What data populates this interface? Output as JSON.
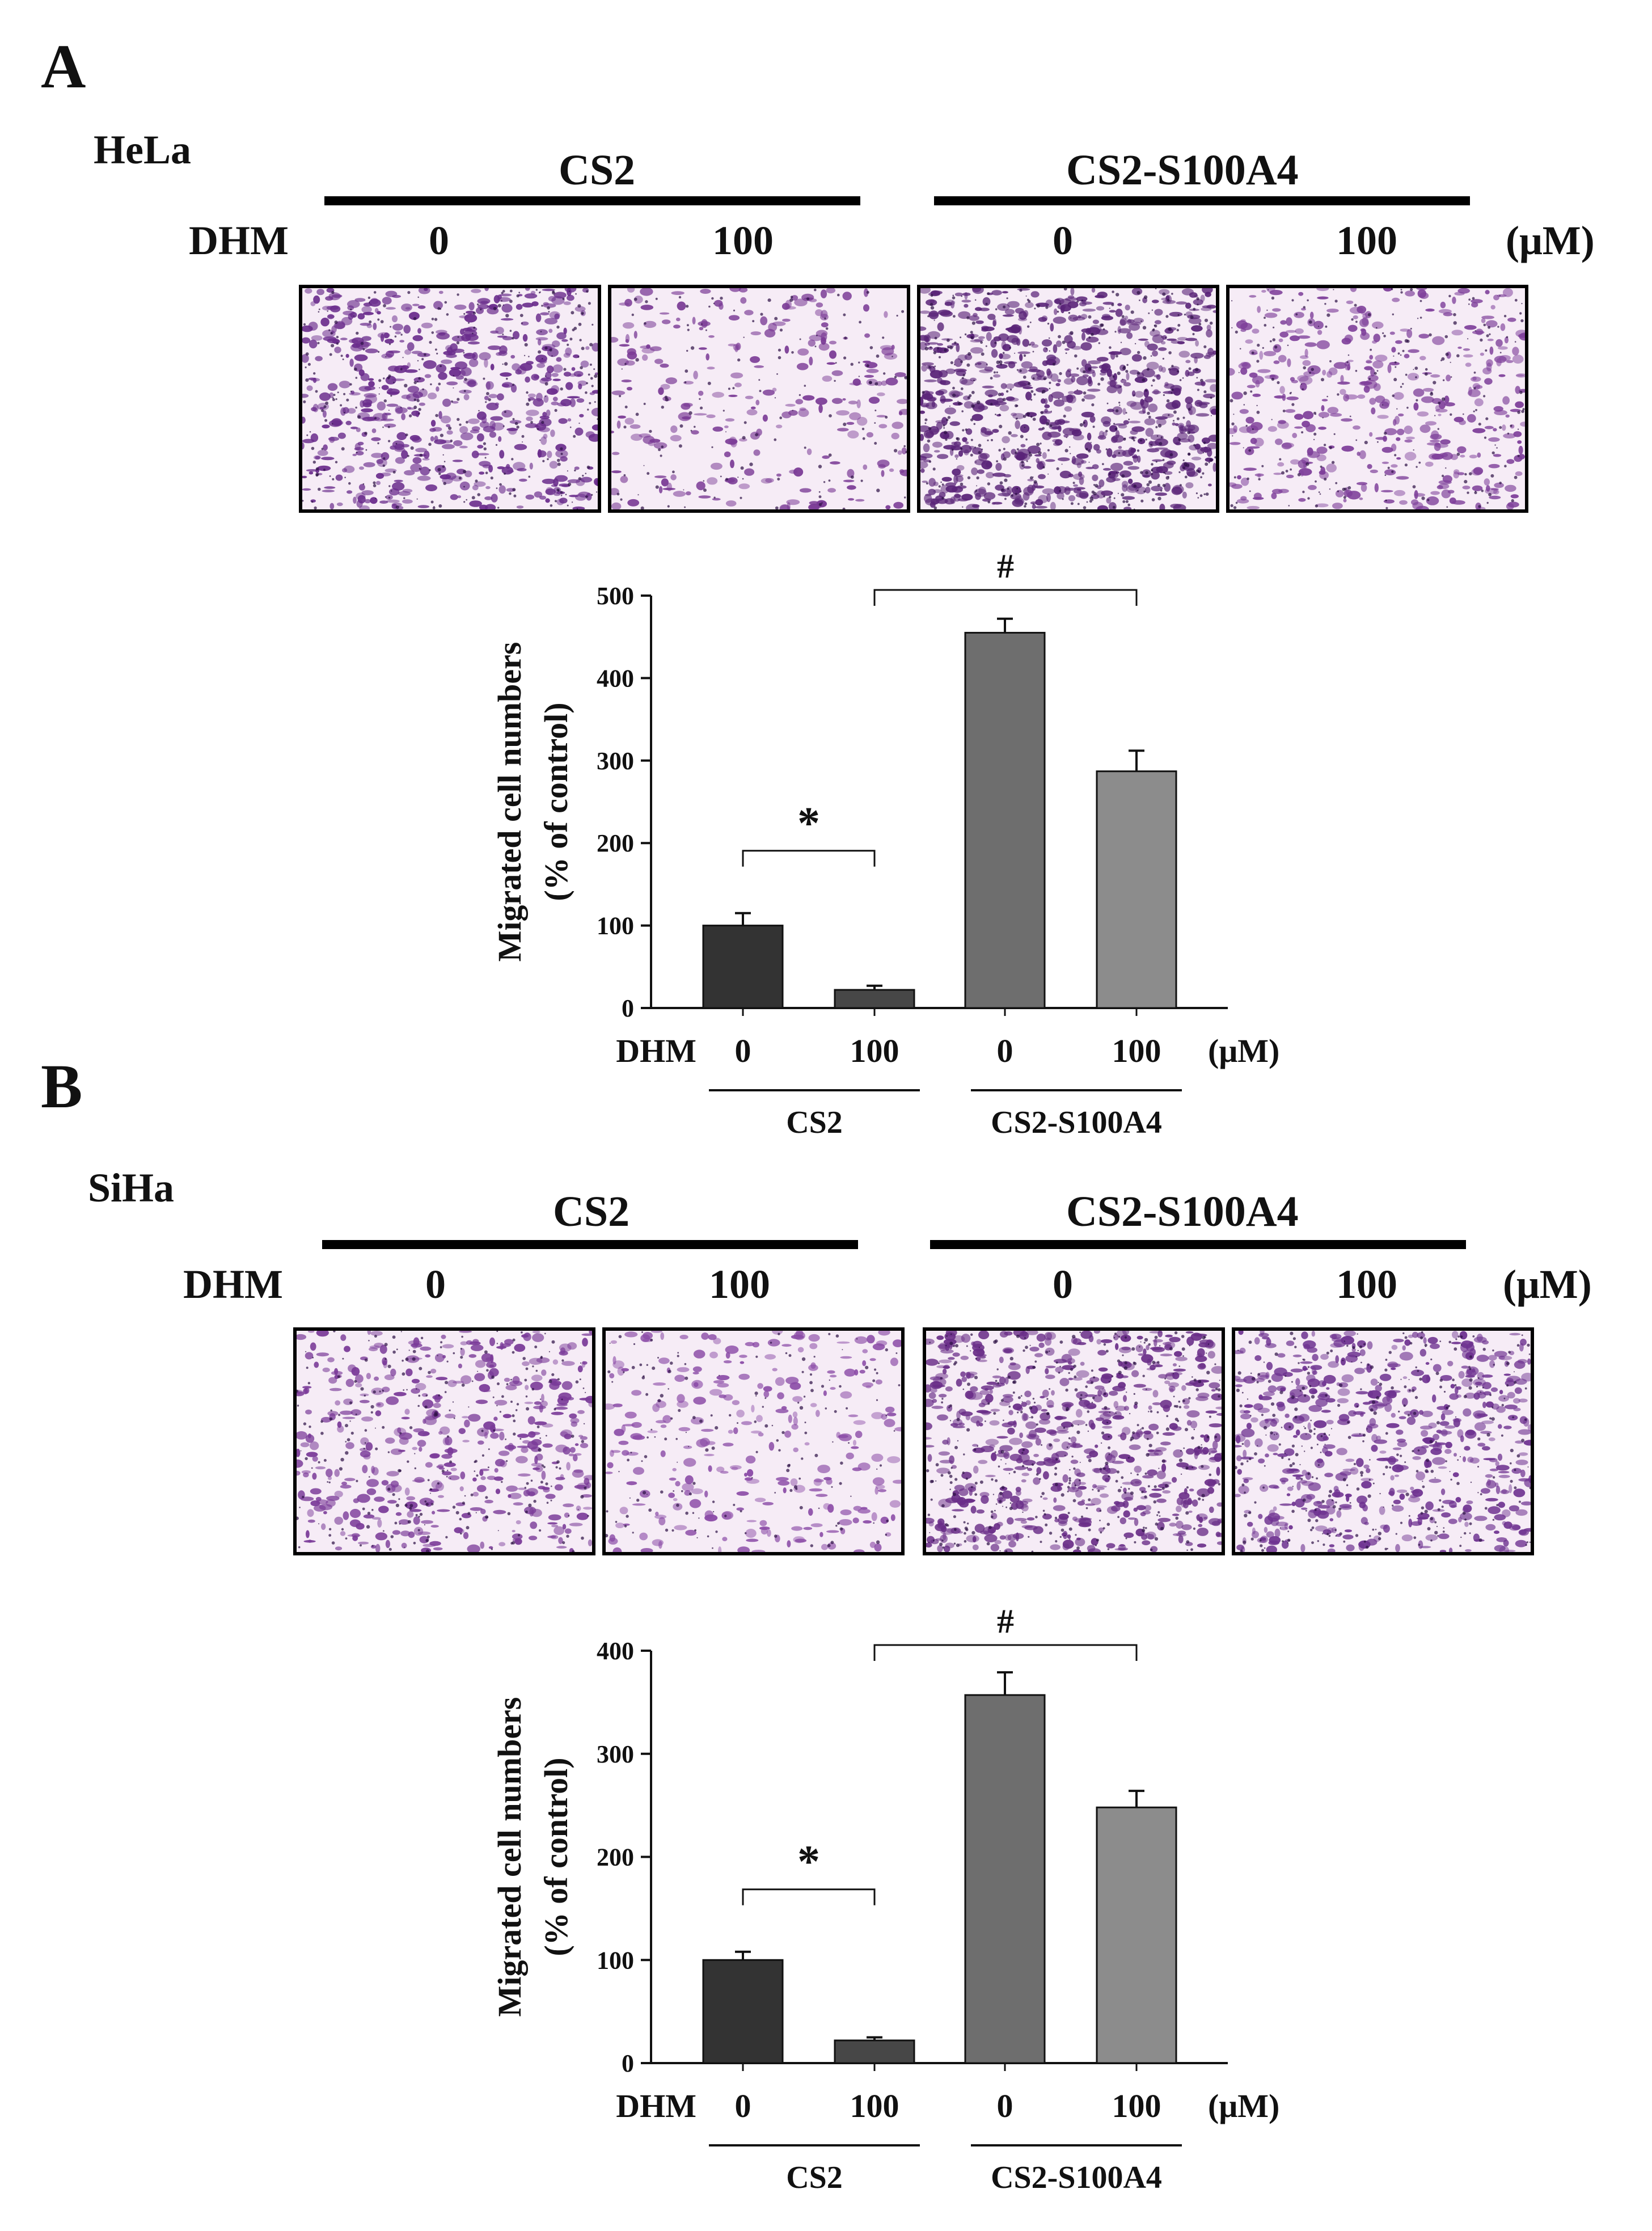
{
  "panels": [
    {
      "letter": "A",
      "cell_line": "HeLa",
      "treatment_label": "DHM",
      "unit": "(μM)",
      "groups": [
        "CS2",
        "CS2-S100A4"
      ],
      "doses": [
        "0",
        "100",
        "0",
        "100"
      ],
      "images": [
        {
          "group": "CS2",
          "dose": "0",
          "stain_density": 0.62,
          "tone": "#6a2c8c"
        },
        {
          "group": "CS2",
          "dose": "100",
          "stain_density": 0.28,
          "tone": "#7a3a95"
        },
        {
          "group": "CS2-S100A4",
          "dose": "0",
          "stain_density": 0.82,
          "tone": "#5a2478"
        },
        {
          "group": "CS2-S100A4",
          "dose": "100",
          "stain_density": 0.45,
          "tone": "#7e3f9a"
        }
      ]
    },
    {
      "letter": "B",
      "cell_line": "SiHa",
      "treatment_label": "DHM",
      "unit": "(μM)",
      "groups": [
        "CS2",
        "CS2-S100A4"
      ],
      "doses": [
        "0",
        "100",
        "0",
        "100"
      ],
      "images": [
        {
          "group": "CS2",
          "dose": "0",
          "stain_density": 0.5,
          "tone": "#7a3a98"
        },
        {
          "group": "CS2",
          "dose": "100",
          "stain_density": 0.3,
          "tone": "#8a4aa6"
        },
        {
          "group": "CS2-S100A4",
          "dose": "0",
          "stain_density": 0.72,
          "tone": "#6a2e88"
        },
        {
          "group": "CS2-S100A4",
          "dose": "100",
          "stain_density": 0.62,
          "tone": "#6e3290"
        }
      ]
    }
  ],
  "chart_data": [
    {
      "type": "bar",
      "ylabel": "Migrated cell numbers",
      "ylabel2": "(% of control)",
      "xlabel_prefix": "DHM",
      "xlabel_unit": "(μM)",
      "categories": [
        "0",
        "100",
        "0",
        "100"
      ],
      "groups": [
        "CS2",
        "CS2-S100A4"
      ],
      "values": [
        100,
        22,
        455,
        287
      ],
      "errors": [
        15,
        5,
        17,
        25
      ],
      "colors": [
        "#333333",
        "#474747",
        "#6e6e6e",
        "#8c8c8c"
      ],
      "ylim": [
        0,
        500
      ],
      "yticks": [
        0,
        100,
        200,
        300,
        400,
        500
      ],
      "significance": [
        {
          "from": 0,
          "to": 1,
          "symbol": "*"
        },
        {
          "from": 1,
          "to": 3,
          "symbol": "#"
        }
      ]
    },
    {
      "type": "bar",
      "ylabel": "Migrated cell numbers",
      "ylabel2": "(% of control)",
      "xlabel_prefix": "DHM",
      "xlabel_unit": "(μM)",
      "categories": [
        "0",
        "100",
        "0",
        "100"
      ],
      "groups": [
        "CS2",
        "CS2-S100A4"
      ],
      "values": [
        100,
        22,
        357,
        248
      ],
      "errors": [
        8,
        3,
        22,
        16
      ],
      "colors": [
        "#333333",
        "#474747",
        "#6e6e6e",
        "#8c8c8c"
      ],
      "ylim": [
        0,
        400
      ],
      "yticks": [
        0,
        100,
        200,
        300,
        400
      ],
      "significance": [
        {
          "from": 0,
          "to": 1,
          "symbol": "*"
        },
        {
          "from": 1,
          "to": 3,
          "symbol": "#"
        }
      ]
    }
  ]
}
